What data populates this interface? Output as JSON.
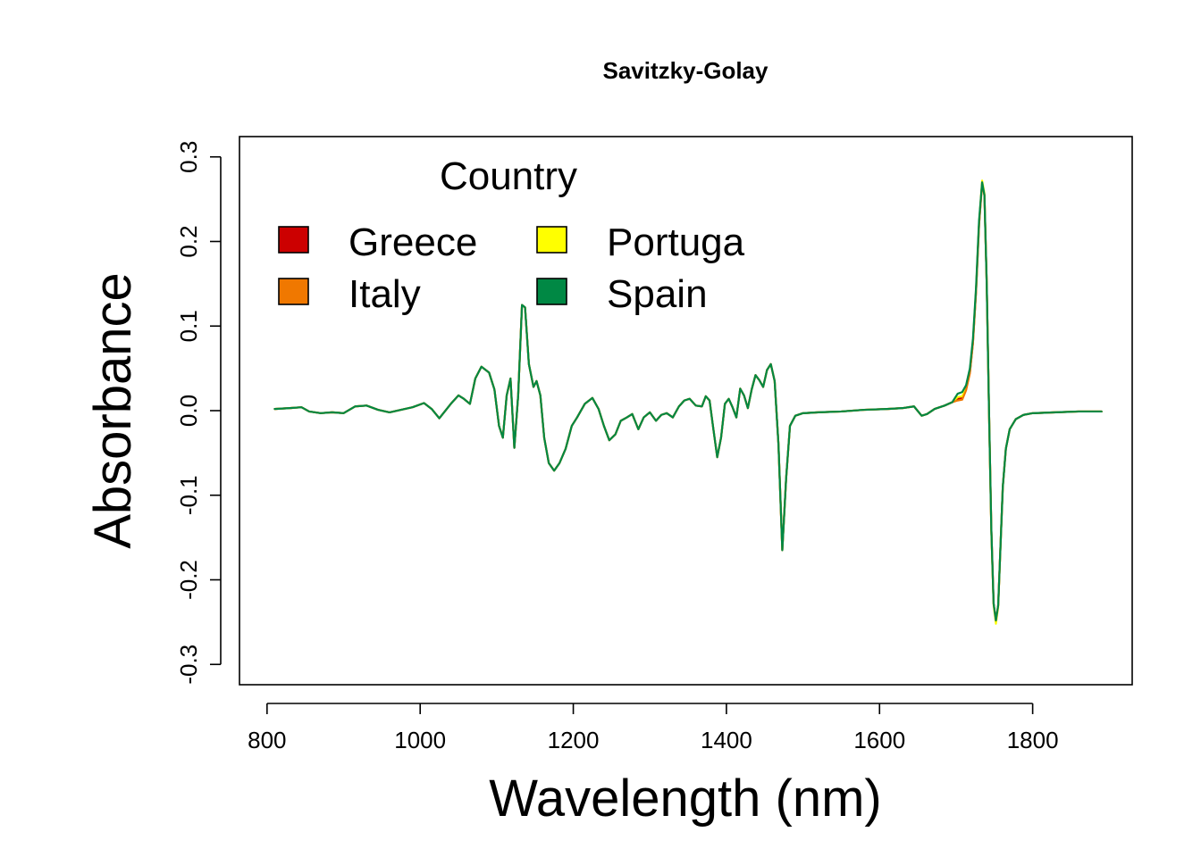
{
  "chart_data": {
    "type": "line",
    "title": "Savitzky-Golay",
    "xlabel": "Wavelength (nm)",
    "ylabel": "Absorbance",
    "xlim": [
      764,
      1930
    ],
    "ylim": [
      -0.324,
      0.324
    ],
    "x_ticks": [
      800,
      1000,
      1200,
      1400,
      1600,
      1800
    ],
    "x_tick_labels": [
      "800",
      "1000",
      "1200",
      "1400",
      "1600",
      "1800"
    ],
    "y_ticks": [
      -0.3,
      -0.2,
      -0.1,
      0.0,
      0.1,
      0.2,
      0.3
    ],
    "y_tick_labels": [
      "-0.3",
      "-0.2",
      "-0.1",
      "0.0",
      "0.1",
      "0.2",
      "0.3"
    ],
    "grid": false,
    "legend": {
      "title": "Country",
      "position": "top-left",
      "entries": [
        {
          "name": "Greece",
          "color": "#cc0000"
        },
        {
          "name": "Portuga",
          "color": "#ffff00"
        },
        {
          "name": "Italy",
          "color": "#f07800"
        },
        {
          "name": "Spain",
          "color": "#008844"
        }
      ]
    },
    "x": [
      810,
      830,
      845,
      855,
      870,
      885,
      900,
      915,
      930,
      945,
      960,
      975,
      990,
      1005,
      1015,
      1025,
      1040,
      1050,
      1057,
      1065,
      1072,
      1080,
      1090,
      1097,
      1103,
      1108,
      1113,
      1118,
      1123,
      1128,
      1133,
      1137,
      1142,
      1148,
      1152,
      1157,
      1162,
      1168,
      1175,
      1182,
      1190,
      1198,
      1205,
      1215,
      1225,
      1233,
      1240,
      1247,
      1255,
      1262,
      1270,
      1277,
      1285,
      1292,
      1300,
      1308,
      1315,
      1322,
      1330,
      1338,
      1345,
      1352,
      1360,
      1368,
      1373,
      1378,
      1383,
      1388,
      1393,
      1398,
      1403,
      1408,
      1413,
      1418,
      1423,
      1428,
      1433,
      1438,
      1443,
      1448,
      1453,
      1458,
      1463,
      1468,
      1473,
      1478,
      1483,
      1490,
      1500,
      1520,
      1550,
      1580,
      1610,
      1630,
      1645,
      1655,
      1662,
      1672,
      1685,
      1695,
      1702,
      1708,
      1713,
      1718,
      1722,
      1726,
      1730,
      1734,
      1737,
      1740,
      1743,
      1746,
      1749,
      1752,
      1755,
      1758,
      1761,
      1765,
      1770,
      1778,
      1788,
      1800,
      1830,
      1860,
      1890
    ],
    "series": [
      {
        "name": "Greece",
        "color": "#cc0000",
        "values": [
          0.002,
          0.003,
          0.004,
          -0.001,
          -0.003,
          -0.002,
          -0.003,
          0.005,
          0.006,
          0.001,
          -0.002,
          0.001,
          0.004,
          0.009,
          0.002,
          -0.009,
          0.008,
          0.018,
          0.014,
          0.008,
          0.038,
          0.052,
          0.045,
          0.025,
          -0.018,
          -0.032,
          0.018,
          0.038,
          -0.044,
          0.018,
          0.125,
          0.122,
          0.055,
          0.028,
          0.035,
          0.018,
          -0.032,
          -0.062,
          -0.071,
          -0.062,
          -0.045,
          -0.018,
          -0.008,
          0.008,
          0.015,
          0.002,
          -0.018,
          -0.035,
          -0.028,
          -0.012,
          -0.008,
          -0.004,
          -0.022,
          -0.008,
          -0.002,
          -0.012,
          -0.005,
          -0.003,
          -0.008,
          0.005,
          0.012,
          0.014,
          0.006,
          0.005,
          0.017,
          0.012,
          -0.022,
          -0.055,
          -0.032,
          0.008,
          0.014,
          0.004,
          -0.008,
          0.026,
          0.018,
          0.003,
          0.025,
          0.042,
          0.036,
          0.028,
          0.048,
          0.055,
          0.035,
          -0.04,
          -0.165,
          -0.08,
          -0.018,
          -0.006,
          -0.003,
          -0.002,
          -0.001,
          0.001,
          0.002,
          0.003,
          0.005,
          -0.006,
          -0.004,
          0.002,
          0.006,
          0.01,
          0.014,
          0.015,
          0.025,
          0.045,
          0.08,
          0.14,
          0.22,
          0.27,
          0.255,
          0.15,
          0.0,
          -0.14,
          -0.228,
          -0.25,
          -0.23,
          -0.16,
          -0.09,
          -0.045,
          -0.022,
          -0.01,
          -0.005,
          -0.003,
          -0.002,
          -0.001,
          -0.001
        ]
      },
      {
        "name": "Portuga",
        "color": "#ffff00",
        "values": [
          0.002,
          0.003,
          0.004,
          -0.001,
          -0.003,
          -0.002,
          -0.003,
          0.005,
          0.006,
          0.001,
          -0.002,
          0.001,
          0.004,
          0.009,
          0.002,
          -0.009,
          0.008,
          0.018,
          0.014,
          0.008,
          0.038,
          0.052,
          0.045,
          0.025,
          -0.018,
          -0.032,
          0.018,
          0.038,
          -0.044,
          0.018,
          0.125,
          0.122,
          0.055,
          0.028,
          0.035,
          0.018,
          -0.032,
          -0.062,
          -0.071,
          -0.062,
          -0.045,
          -0.018,
          -0.008,
          0.008,
          0.015,
          0.002,
          -0.018,
          -0.035,
          -0.028,
          -0.012,
          -0.008,
          -0.004,
          -0.022,
          -0.008,
          -0.002,
          -0.012,
          -0.005,
          -0.003,
          -0.008,
          0.005,
          0.012,
          0.014,
          0.006,
          0.005,
          0.017,
          0.012,
          -0.022,
          -0.055,
          -0.032,
          0.008,
          0.014,
          0.004,
          -0.008,
          0.026,
          0.018,
          0.003,
          0.025,
          0.042,
          0.036,
          0.028,
          0.048,
          0.055,
          0.035,
          -0.04,
          -0.165,
          -0.08,
          -0.018,
          -0.006,
          -0.003,
          -0.002,
          -0.001,
          0.001,
          0.002,
          0.003,
          0.005,
          -0.006,
          -0.004,
          0.002,
          0.006,
          0.01,
          0.016,
          0.017,
          0.027,
          0.047,
          0.082,
          0.142,
          0.222,
          0.272,
          0.257,
          0.15,
          0.0,
          -0.142,
          -0.23,
          -0.252,
          -0.232,
          -0.16,
          -0.09,
          -0.045,
          -0.022,
          -0.01,
          -0.005,
          -0.003,
          -0.002,
          -0.001,
          -0.001
        ]
      },
      {
        "name": "Italy",
        "color": "#f07800",
        "values": [
          0.002,
          0.003,
          0.004,
          -0.001,
          -0.003,
          -0.002,
          -0.003,
          0.005,
          0.006,
          0.001,
          -0.002,
          0.001,
          0.004,
          0.009,
          0.002,
          -0.009,
          0.008,
          0.018,
          0.014,
          0.008,
          0.038,
          0.052,
          0.045,
          0.025,
          -0.018,
          -0.032,
          0.018,
          0.038,
          -0.044,
          0.018,
          0.125,
          0.122,
          0.055,
          0.028,
          0.035,
          0.018,
          -0.032,
          -0.062,
          -0.071,
          -0.062,
          -0.045,
          -0.018,
          -0.008,
          0.008,
          0.015,
          0.002,
          -0.018,
          -0.035,
          -0.028,
          -0.012,
          -0.008,
          -0.004,
          -0.022,
          -0.008,
          -0.002,
          -0.012,
          -0.005,
          -0.003,
          -0.008,
          0.005,
          0.012,
          0.014,
          0.006,
          0.005,
          0.017,
          0.012,
          -0.022,
          -0.055,
          -0.032,
          0.008,
          0.014,
          0.004,
          -0.008,
          0.026,
          0.018,
          0.003,
          0.025,
          0.042,
          0.036,
          0.028,
          0.048,
          0.055,
          0.035,
          -0.04,
          -0.165,
          -0.08,
          -0.018,
          -0.006,
          -0.003,
          -0.002,
          -0.001,
          0.001,
          0.002,
          0.003,
          0.005,
          -0.006,
          -0.004,
          0.002,
          0.006,
          0.01,
          0.012,
          0.013,
          0.024,
          0.044,
          0.08,
          0.14,
          0.22,
          0.268,
          0.254,
          0.15,
          0.0,
          -0.14,
          -0.228,
          -0.248,
          -0.23,
          -0.16,
          -0.09,
          -0.045,
          -0.022,
          -0.01,
          -0.005,
          -0.003,
          -0.002,
          -0.001,
          -0.001
        ]
      },
      {
        "name": "Spain",
        "color": "#008844",
        "values": [
          0.002,
          0.003,
          0.004,
          -0.001,
          -0.003,
          -0.002,
          -0.003,
          0.005,
          0.006,
          0.001,
          -0.002,
          0.001,
          0.004,
          0.009,
          0.002,
          -0.009,
          0.008,
          0.018,
          0.014,
          0.008,
          0.038,
          0.052,
          0.045,
          0.025,
          -0.018,
          -0.032,
          0.018,
          0.038,
          -0.044,
          0.018,
          0.125,
          0.122,
          0.055,
          0.028,
          0.035,
          0.018,
          -0.032,
          -0.062,
          -0.071,
          -0.062,
          -0.045,
          -0.018,
          -0.008,
          0.008,
          0.015,
          0.002,
          -0.018,
          -0.035,
          -0.028,
          -0.012,
          -0.008,
          -0.004,
          -0.022,
          -0.008,
          -0.002,
          -0.012,
          -0.005,
          -0.003,
          -0.008,
          0.005,
          0.012,
          0.014,
          0.006,
          0.005,
          0.017,
          0.012,
          -0.022,
          -0.055,
          -0.032,
          0.008,
          0.014,
          0.004,
          -0.008,
          0.026,
          0.018,
          0.003,
          0.025,
          0.042,
          0.036,
          0.028,
          0.048,
          0.055,
          0.035,
          -0.04,
          -0.165,
          -0.08,
          -0.018,
          -0.006,
          -0.003,
          -0.002,
          -0.001,
          0.001,
          0.002,
          0.003,
          0.005,
          -0.006,
          -0.004,
          0.002,
          0.006,
          0.01,
          0.02,
          0.022,
          0.03,
          0.05,
          0.085,
          0.145,
          0.225,
          0.27,
          0.255,
          0.15,
          0.0,
          -0.14,
          -0.228,
          -0.248,
          -0.23,
          -0.16,
          -0.09,
          -0.045,
          -0.022,
          -0.01,
          -0.005,
          -0.003,
          -0.002,
          -0.001,
          -0.001
        ]
      }
    ]
  }
}
